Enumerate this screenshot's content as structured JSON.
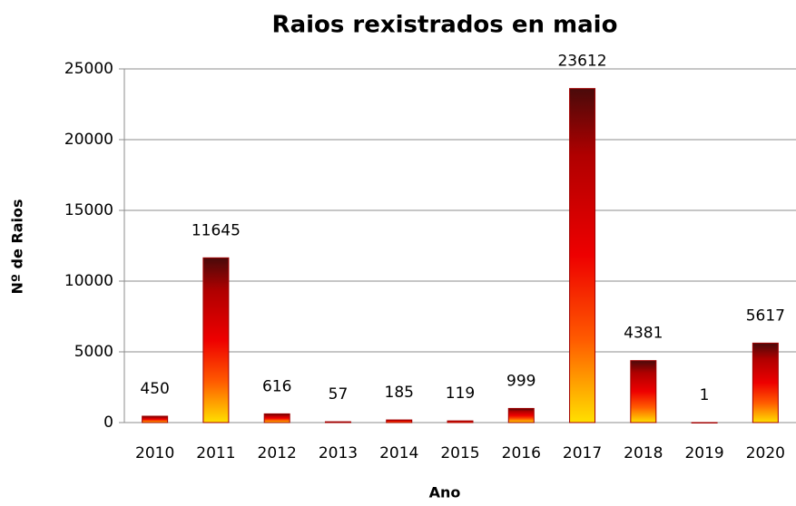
{
  "chart_data": {
    "type": "bar",
    "title": "Raios rexistrados en maio",
    "x_label": "Ano",
    "y_label": "Nº de Raios",
    "categories": [
      "2010",
      "2011",
      "2012",
      "2013",
      "2014",
      "2015",
      "2016",
      "2017",
      "2018",
      "2019",
      "2020"
    ],
    "values": [
      450,
      11645,
      616,
      57,
      185,
      119,
      999,
      23612,
      4381,
      1,
      5617
    ],
    "ylim": [
      0,
      25000
    ],
    "yticks": [
      0,
      5000,
      10000,
      15000,
      20000,
      25000
    ],
    "grid": true
  }
}
